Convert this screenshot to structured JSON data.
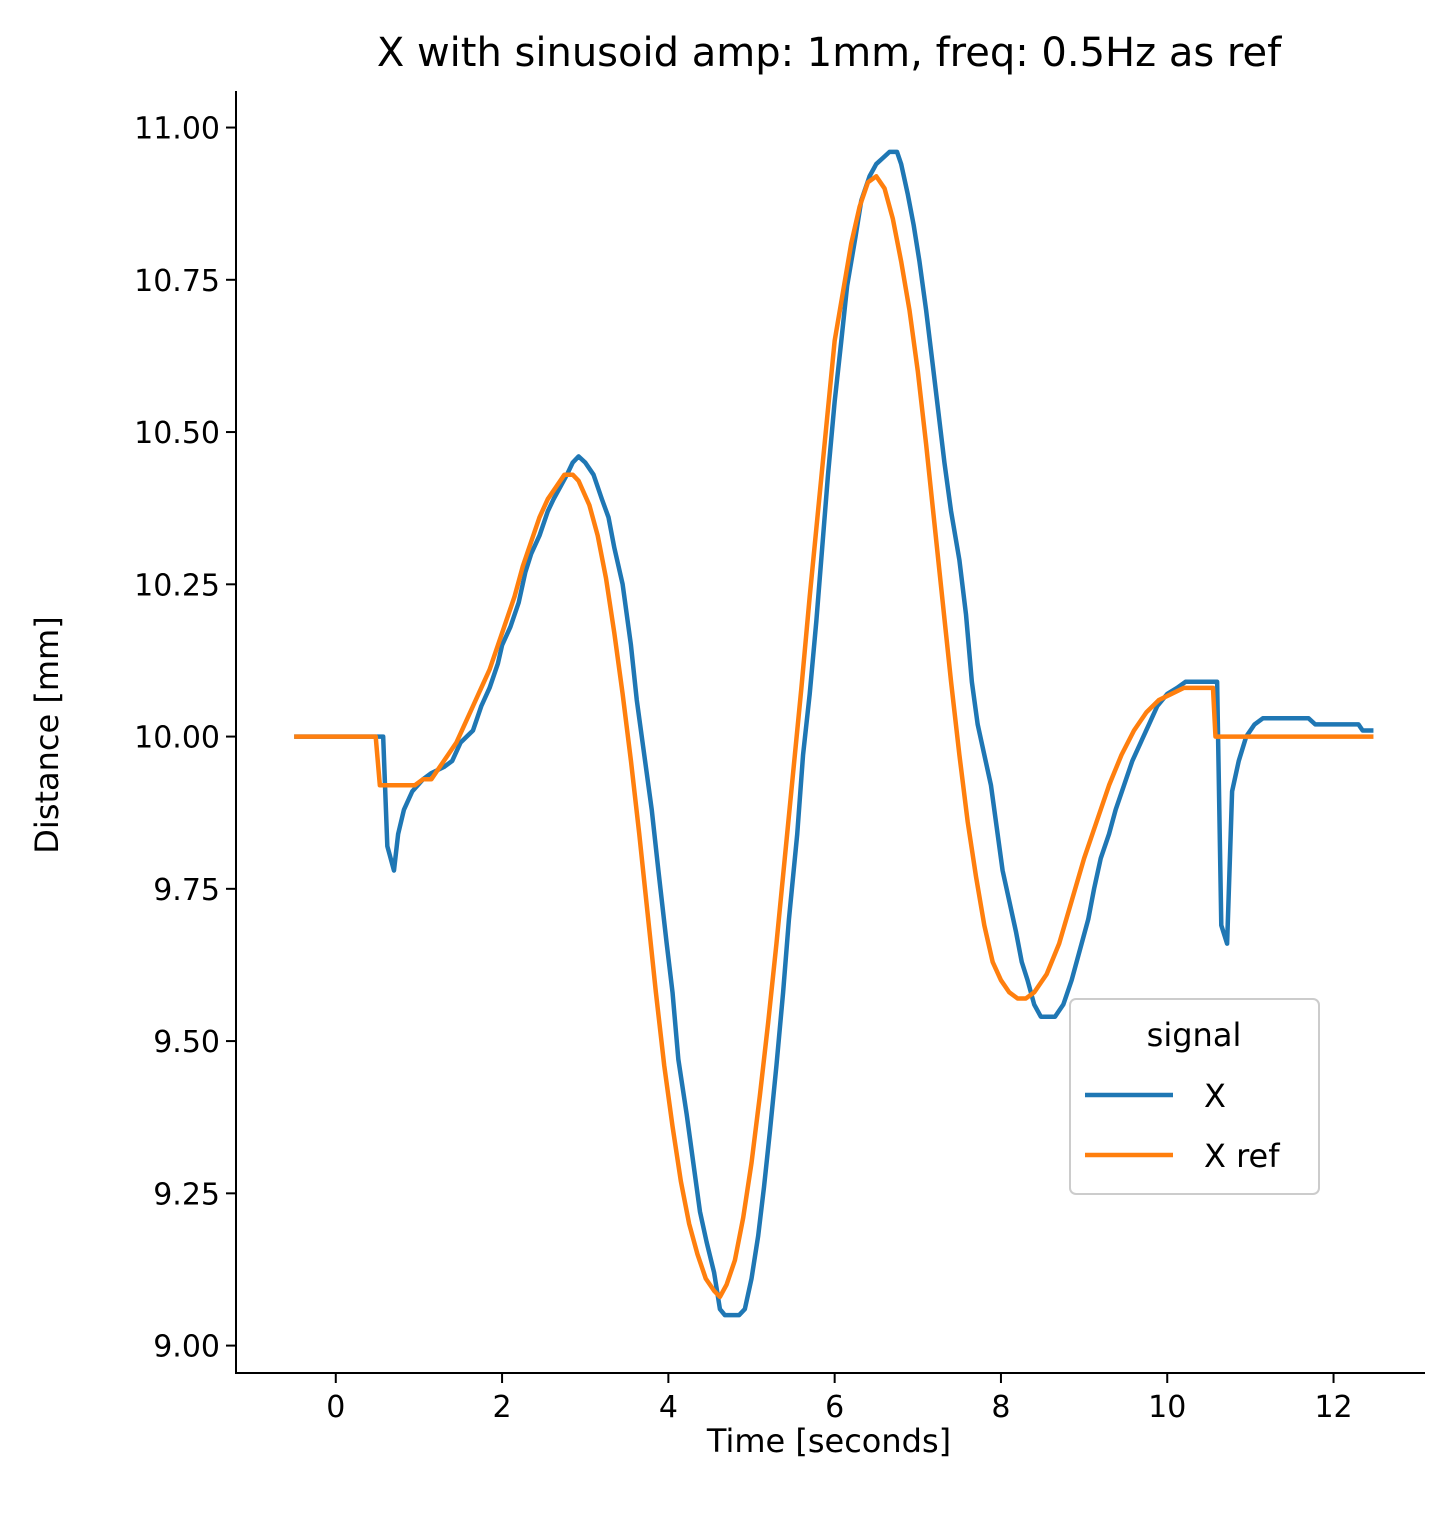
{
  "chart_data": {
    "type": "line",
    "title": "X with sinusoid amp: 1mm, freq: 0.5Hz as ref",
    "xlabel": "Time [seconds]",
    "ylabel": "Distance [mm]",
    "xlim": [
      -1.2,
      13.1
    ],
    "ylim": [
      8.955,
      11.06
    ],
    "xticks": [
      0,
      2,
      4,
      6,
      8,
      10,
      12
    ],
    "xtick_labels": [
      "0",
      "2",
      "4",
      "6",
      "8",
      "10",
      "12"
    ],
    "yticks": [
      9.0,
      9.25,
      9.5,
      9.75,
      10.0,
      10.25,
      10.5,
      10.75,
      11.0
    ],
    "ytick_labels": [
      "9.00",
      "9.25",
      "9.50",
      "9.75",
      "10.00",
      "10.25",
      "10.50",
      "10.75",
      "11.00"
    ],
    "grid": false,
    "legend": {
      "title": "signal",
      "position": "right"
    },
    "series": [
      {
        "name": "X",
        "color": "#1f77b4",
        "points": [
          [
            -0.5,
            10.0
          ],
          [
            0.5,
            10.0
          ],
          [
            0.57,
            10.0
          ],
          [
            0.62,
            9.82
          ],
          [
            0.7,
            9.78
          ],
          [
            0.75,
            9.84
          ],
          [
            0.82,
            9.88
          ],
          [
            0.92,
            9.91
          ],
          [
            1.05,
            9.93
          ],
          [
            1.15,
            9.94
          ],
          [
            1.3,
            9.95
          ],
          [
            1.4,
            9.96
          ],
          [
            1.5,
            9.99
          ],
          [
            1.65,
            10.01
          ],
          [
            1.75,
            10.05
          ],
          [
            1.85,
            10.08
          ],
          [
            1.95,
            10.12
          ],
          [
            2.0,
            10.15
          ],
          [
            2.1,
            10.18
          ],
          [
            2.2,
            10.22
          ],
          [
            2.28,
            10.27
          ],
          [
            2.35,
            10.3
          ],
          [
            2.45,
            10.33
          ],
          [
            2.55,
            10.37
          ],
          [
            2.62,
            10.39
          ],
          [
            2.7,
            10.41
          ],
          [
            2.78,
            10.43
          ],
          [
            2.85,
            10.45
          ],
          [
            2.92,
            10.46
          ],
          [
            3.0,
            10.45
          ],
          [
            3.1,
            10.43
          ],
          [
            3.2,
            10.39
          ],
          [
            3.28,
            10.36
          ],
          [
            3.35,
            10.31
          ],
          [
            3.45,
            10.25
          ],
          [
            3.55,
            10.15
          ],
          [
            3.62,
            10.06
          ],
          [
            3.7,
            9.98
          ],
          [
            3.8,
            9.88
          ],
          [
            3.88,
            9.78
          ],
          [
            3.98,
            9.66
          ],
          [
            4.05,
            9.58
          ],
          [
            4.12,
            9.47
          ],
          [
            4.22,
            9.38
          ],
          [
            4.3,
            9.3
          ],
          [
            4.38,
            9.22
          ],
          [
            4.46,
            9.17
          ],
          [
            4.55,
            9.12
          ],
          [
            4.62,
            9.06
          ],
          [
            4.68,
            9.05
          ],
          [
            4.75,
            9.05
          ],
          [
            4.85,
            9.05
          ],
          [
            4.92,
            9.06
          ],
          [
            5.0,
            9.11
          ],
          [
            5.08,
            9.18
          ],
          [
            5.15,
            9.26
          ],
          [
            5.22,
            9.35
          ],
          [
            5.3,
            9.46
          ],
          [
            5.38,
            9.58
          ],
          [
            5.45,
            9.7
          ],
          [
            5.55,
            9.84
          ],
          [
            5.62,
            9.97
          ],
          [
            5.7,
            10.07
          ],
          [
            5.78,
            10.19
          ],
          [
            5.85,
            10.31
          ],
          [
            5.92,
            10.43
          ],
          [
            6.0,
            10.55
          ],
          [
            6.08,
            10.65
          ],
          [
            6.15,
            10.74
          ],
          [
            6.25,
            10.82
          ],
          [
            6.32,
            10.88
          ],
          [
            6.42,
            10.92
          ],
          [
            6.5,
            10.94
          ],
          [
            6.58,
            10.95
          ],
          [
            6.66,
            10.96
          ],
          [
            6.75,
            10.96
          ],
          [
            6.8,
            10.94
          ],
          [
            6.88,
            10.89
          ],
          [
            6.95,
            10.84
          ],
          [
            7.02,
            10.78
          ],
          [
            7.1,
            10.7
          ],
          [
            7.18,
            10.61
          ],
          [
            7.25,
            10.53
          ],
          [
            7.32,
            10.45
          ],
          [
            7.4,
            10.37
          ],
          [
            7.5,
            10.29
          ],
          [
            7.58,
            10.2
          ],
          [
            7.65,
            10.09
          ],
          [
            7.72,
            10.02
          ],
          [
            7.8,
            9.97
          ],
          [
            7.88,
            9.92
          ],
          [
            7.95,
            9.85
          ],
          [
            8.02,
            9.78
          ],
          [
            8.1,
            9.73
          ],
          [
            8.18,
            9.68
          ],
          [
            8.25,
            9.63
          ],
          [
            8.32,
            9.6
          ],
          [
            8.4,
            9.56
          ],
          [
            8.48,
            9.54
          ],
          [
            8.55,
            9.54
          ],
          [
            8.65,
            9.54
          ],
          [
            8.75,
            9.56
          ],
          [
            8.85,
            9.6
          ],
          [
            8.95,
            9.65
          ],
          [
            9.05,
            9.7
          ],
          [
            9.12,
            9.75
          ],
          [
            9.2,
            9.8
          ],
          [
            9.3,
            9.84
          ],
          [
            9.38,
            9.88
          ],
          [
            9.48,
            9.92
          ],
          [
            9.58,
            9.96
          ],
          [
            9.68,
            9.99
          ],
          [
            9.78,
            10.02
          ],
          [
            9.88,
            10.05
          ],
          [
            10.0,
            10.07
          ],
          [
            10.12,
            10.08
          ],
          [
            10.22,
            10.09
          ],
          [
            10.5,
            10.09
          ],
          [
            10.6,
            10.09
          ],
          [
            10.65,
            9.69
          ],
          [
            10.72,
            9.66
          ],
          [
            10.78,
            9.91
          ],
          [
            10.86,
            9.96
          ],
          [
            10.95,
            10.0
          ],
          [
            11.05,
            10.02
          ],
          [
            11.15,
            10.03
          ],
          [
            11.7,
            10.03
          ],
          [
            11.78,
            10.02
          ],
          [
            12.3,
            10.02
          ],
          [
            12.35,
            10.01
          ],
          [
            12.48,
            10.01
          ]
        ]
      },
      {
        "name": "X ref",
        "color": "#ff7f0e",
        "points": [
          [
            -0.5,
            10.0
          ],
          [
            0.48,
            10.0
          ],
          [
            0.53,
            9.92
          ],
          [
            0.75,
            9.92
          ],
          [
            0.95,
            9.92
          ],
          [
            1.05,
            9.93
          ],
          [
            1.15,
            9.93
          ],
          [
            1.25,
            9.95
          ],
          [
            1.35,
            9.97
          ],
          [
            1.45,
            9.99
          ],
          [
            1.55,
            10.02
          ],
          [
            1.65,
            10.05
          ],
          [
            1.75,
            10.08
          ],
          [
            1.85,
            10.11
          ],
          [
            1.95,
            10.15
          ],
          [
            2.05,
            10.19
          ],
          [
            2.15,
            10.23
          ],
          [
            2.25,
            10.28
          ],
          [
            2.35,
            10.32
          ],
          [
            2.45,
            10.36
          ],
          [
            2.55,
            10.39
          ],
          [
            2.65,
            10.41
          ],
          [
            2.75,
            10.43
          ],
          [
            2.85,
            10.43
          ],
          [
            2.92,
            10.42
          ],
          [
            3.05,
            10.38
          ],
          [
            3.15,
            10.33
          ],
          [
            3.25,
            10.26
          ],
          [
            3.35,
            10.17
          ],
          [
            3.45,
            10.07
          ],
          [
            3.55,
            9.96
          ],
          [
            3.65,
            9.84
          ],
          [
            3.75,
            9.71
          ],
          [
            3.85,
            9.58
          ],
          [
            3.95,
            9.46
          ],
          [
            4.05,
            9.36
          ],
          [
            4.15,
            9.27
          ],
          [
            4.25,
            9.2
          ],
          [
            4.35,
            9.15
          ],
          [
            4.45,
            9.11
          ],
          [
            4.55,
            9.09
          ],
          [
            4.62,
            9.08
          ],
          [
            4.7,
            9.1
          ],
          [
            4.8,
            9.14
          ],
          [
            4.9,
            9.21
          ],
          [
            5.0,
            9.3
          ],
          [
            5.1,
            9.41
          ],
          [
            5.2,
            9.53
          ],
          [
            5.3,
            9.66
          ],
          [
            5.4,
            9.8
          ],
          [
            5.5,
            9.94
          ],
          [
            5.6,
            10.08
          ],
          [
            5.7,
            10.23
          ],
          [
            5.8,
            10.37
          ],
          [
            5.9,
            10.51
          ],
          [
            6.0,
            10.65
          ],
          [
            6.1,
            10.73
          ],
          [
            6.2,
            10.81
          ],
          [
            6.3,
            10.87
          ],
          [
            6.4,
            10.91
          ],
          [
            6.5,
            10.92
          ],
          [
            6.6,
            10.9
          ],
          [
            6.7,
            10.85
          ],
          [
            6.8,
            10.78
          ],
          [
            6.9,
            10.7
          ],
          [
            7.0,
            10.6
          ],
          [
            7.1,
            10.48
          ],
          [
            7.2,
            10.35
          ],
          [
            7.3,
            10.22
          ],
          [
            7.4,
            10.09
          ],
          [
            7.5,
            9.97
          ],
          [
            7.6,
            9.86
          ],
          [
            7.7,
            9.77
          ],
          [
            7.8,
            9.69
          ],
          [
            7.9,
            9.63
          ],
          [
            8.0,
            9.6
          ],
          [
            8.1,
            9.58
          ],
          [
            8.2,
            9.57
          ],
          [
            8.3,
            9.57
          ],
          [
            8.4,
            9.58
          ],
          [
            8.55,
            9.61
          ],
          [
            8.7,
            9.66
          ],
          [
            8.85,
            9.73
          ],
          [
            9.0,
            9.8
          ],
          [
            9.15,
            9.86
          ],
          [
            9.3,
            9.92
          ],
          [
            9.45,
            9.97
          ],
          [
            9.6,
            10.01
          ],
          [
            9.75,
            10.04
          ],
          [
            9.9,
            10.06
          ],
          [
            10.05,
            10.07
          ],
          [
            10.2,
            10.08
          ],
          [
            10.55,
            10.08
          ],
          [
            10.58,
            10.0
          ],
          [
            12.48,
            10.0
          ]
        ]
      }
    ]
  }
}
